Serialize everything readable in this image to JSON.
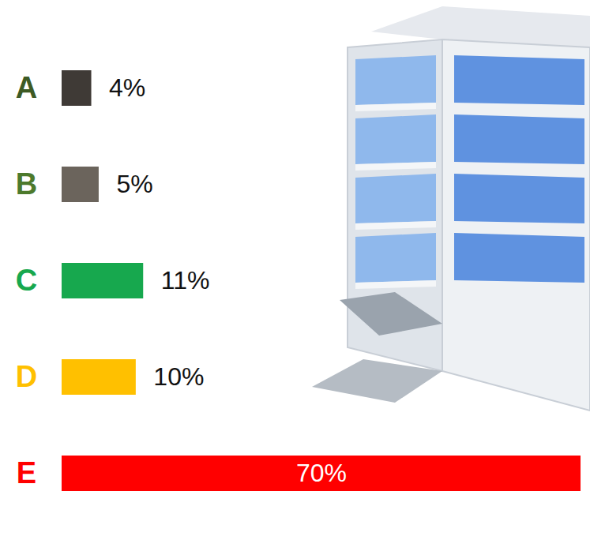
{
  "chart_data": {
    "type": "bar",
    "orientation": "horizontal",
    "categories": [
      "A",
      "B",
      "C",
      "D",
      "E"
    ],
    "values": [
      4,
      5,
      11,
      10,
      70
    ],
    "value_labels": [
      "4%",
      "5%",
      "11%",
      "10%",
      "70%"
    ],
    "colors": [
      "#3f3a36",
      "#6b645c",
      "#17a84e",
      "#ffc000",
      "#ff0000"
    ],
    "xlim": [
      0,
      70
    ],
    "xticks": [],
    "data_labels": true,
    "tick_labels": "y",
    "grid": false
  }
}
